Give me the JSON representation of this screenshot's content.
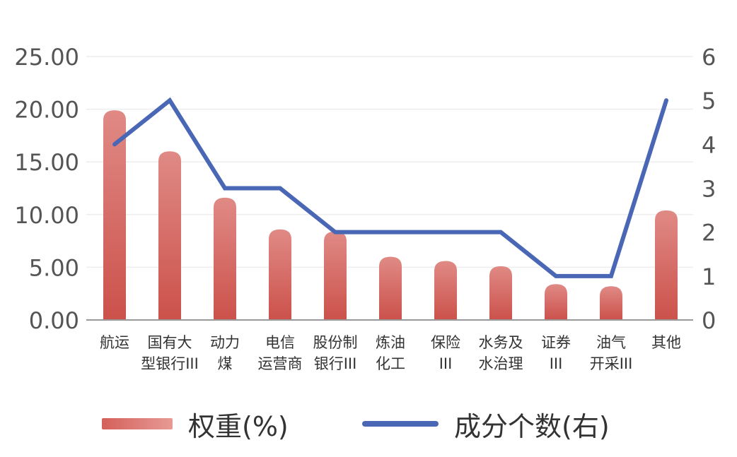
{
  "chart_data": {
    "type": "bar",
    "categories": [
      [
        "航运"
      ],
      [
        "国有大",
        "型银行III"
      ],
      [
        "动力",
        "煤"
      ],
      [
        "电信",
        "运营商"
      ],
      [
        "股份制",
        "银行III"
      ],
      [
        "炼油",
        "化工"
      ],
      [
        "保险",
        "III"
      ],
      [
        "水务及",
        "水治理"
      ],
      [
        "证券",
        "III"
      ],
      [
        "油气",
        "开采III"
      ],
      [
        "其他"
      ]
    ],
    "series": [
      {
        "name": "权重(%)",
        "type": "bar",
        "axis": "left",
        "color": "#d4605a",
        "values": [
          19.9,
          16.0,
          11.6,
          8.6,
          8.4,
          6.0,
          5.6,
          5.1,
          3.4,
          3.2,
          10.4
        ]
      },
      {
        "name": "成分个数(右)",
        "type": "line",
        "axis": "right",
        "color": "#4a67b6",
        "values": [
          4,
          5,
          3,
          3,
          2,
          2,
          2,
          2,
          1,
          1,
          5
        ]
      }
    ],
    "y_left": {
      "ticks": [
        "0.00",
        "5.00",
        "10.00",
        "15.00",
        "20.00",
        "25.00"
      ],
      "min": 0,
      "max": 25
    },
    "y_right": {
      "ticks": [
        "0",
        "1",
        "2",
        "3",
        "4",
        "5",
        "6"
      ],
      "min": 0,
      "max": 6
    },
    "grid": true,
    "legend_position": "bottom"
  },
  "legend": {
    "bar_label": "权重(%)",
    "line_label": "成分个数(右)"
  }
}
